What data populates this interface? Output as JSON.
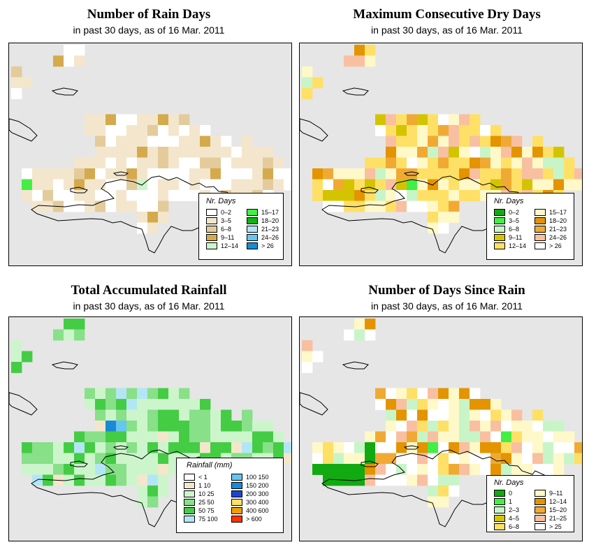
{
  "panels": [
    {
      "id": "rain-days",
      "title": "Number of Rain Days",
      "subtitle": "in past 30 days, as of  16 Mar. 2011",
      "legend": {
        "title": "Nr. Days",
        "items": [
          {
            "label": "0–2",
            "color": "#ffffff"
          },
          {
            "label": "3–5",
            "color": "#f3e6cc"
          },
          {
            "label": "6–8",
            "color": "#e3cb9c"
          },
          {
            "label": "9–11",
            "color": "#d4aa4d"
          },
          {
            "label": "12–14",
            "color": "#ccf5cc"
          },
          {
            "label": "15–17",
            "color": "#44ee44"
          },
          {
            "label": "18–20",
            "color": "#0fb30f"
          },
          {
            "label": "21–23",
            "color": "#b3e6f5"
          },
          {
            "label": "24–26",
            "color": "#66c6f0"
          },
          {
            "label": "> 26",
            "color": "#1a8ad4"
          }
        ]
      }
    },
    {
      "id": "dry-days",
      "title": "Maximum Consecutive Dry Days",
      "subtitle": "in past 30 days, as of  16 Mar. 2011",
      "legend": {
        "title": "Nr. Days",
        "items": [
          {
            "label": "0–2",
            "color": "#11aa11"
          },
          {
            "label": "3–5",
            "color": "#44ee44"
          },
          {
            "label": "6–8",
            "color": "#c8f5c8"
          },
          {
            "label": "9–11",
            "color": "#d4c400"
          },
          {
            "label": "12–14",
            "color": "#ffe066"
          },
          {
            "label": "15–17",
            "color": "#fff8c8"
          },
          {
            "label": "18–20",
            "color": "#e39400"
          },
          {
            "label": "21–23",
            "color": "#f0aa33"
          },
          {
            "label": "24–26",
            "color": "#f8c0a0"
          },
          {
            "label": "> 26",
            "color": "#ffffff"
          }
        ]
      }
    },
    {
      "id": "rainfall",
      "title": "Total Accumulated Rainfall",
      "subtitle": "in past 30 days, as of  16 Mar. 2011",
      "legend": {
        "title": "Rainfall (mm)",
        "items": [
          {
            "label": "<  1",
            "color": "#ffffff"
          },
          {
            "label": "1    10",
            "color": "#f3e6cc"
          },
          {
            "label": "10    25",
            "color": "#ccf5cc"
          },
          {
            "label": "25    50",
            "color": "#88e088"
          },
          {
            "label": "50    75",
            "color": "#44cc44"
          },
          {
            "label": "75   100",
            "color": "#b3e6f5"
          },
          {
            "label": "100   150",
            "color": "#66c6f0"
          },
          {
            "label": "150   200",
            "color": "#1a8ad4"
          },
          {
            "label": "200   300",
            "color": "#2244cc"
          },
          {
            "label": "300   400",
            "color": "#ffe066"
          },
          {
            "label": "400   600",
            "color": "#f0a000"
          },
          {
            "label": ">  600",
            "color": "#ff3300"
          }
        ]
      }
    },
    {
      "id": "since-rain",
      "title": "Number of Days Since Rain",
      "subtitle": "in past 30 days, as of  16 Mar. 2011",
      "legend": {
        "title": "Nr. Days",
        "items": [
          {
            "label": "0",
            "color": "#11aa11"
          },
          {
            "label": "1",
            "color": "#44ee44"
          },
          {
            "label": "2–3",
            "color": "#c8f5c8"
          },
          {
            "label": "4–5",
            "color": "#d4c400"
          },
          {
            "label": "6–8",
            "color": "#ffe066"
          },
          {
            "label": "9–11",
            "color": "#fff8c8"
          },
          {
            "label": "12–14",
            "color": "#e39400"
          },
          {
            "label": "15–20",
            "color": "#f0aa33"
          },
          {
            "label": "21–25",
            "color": "#f8c0a0"
          },
          {
            "label": "> 25",
            "color": "#ffffff"
          }
        ]
      }
    }
  ]
}
